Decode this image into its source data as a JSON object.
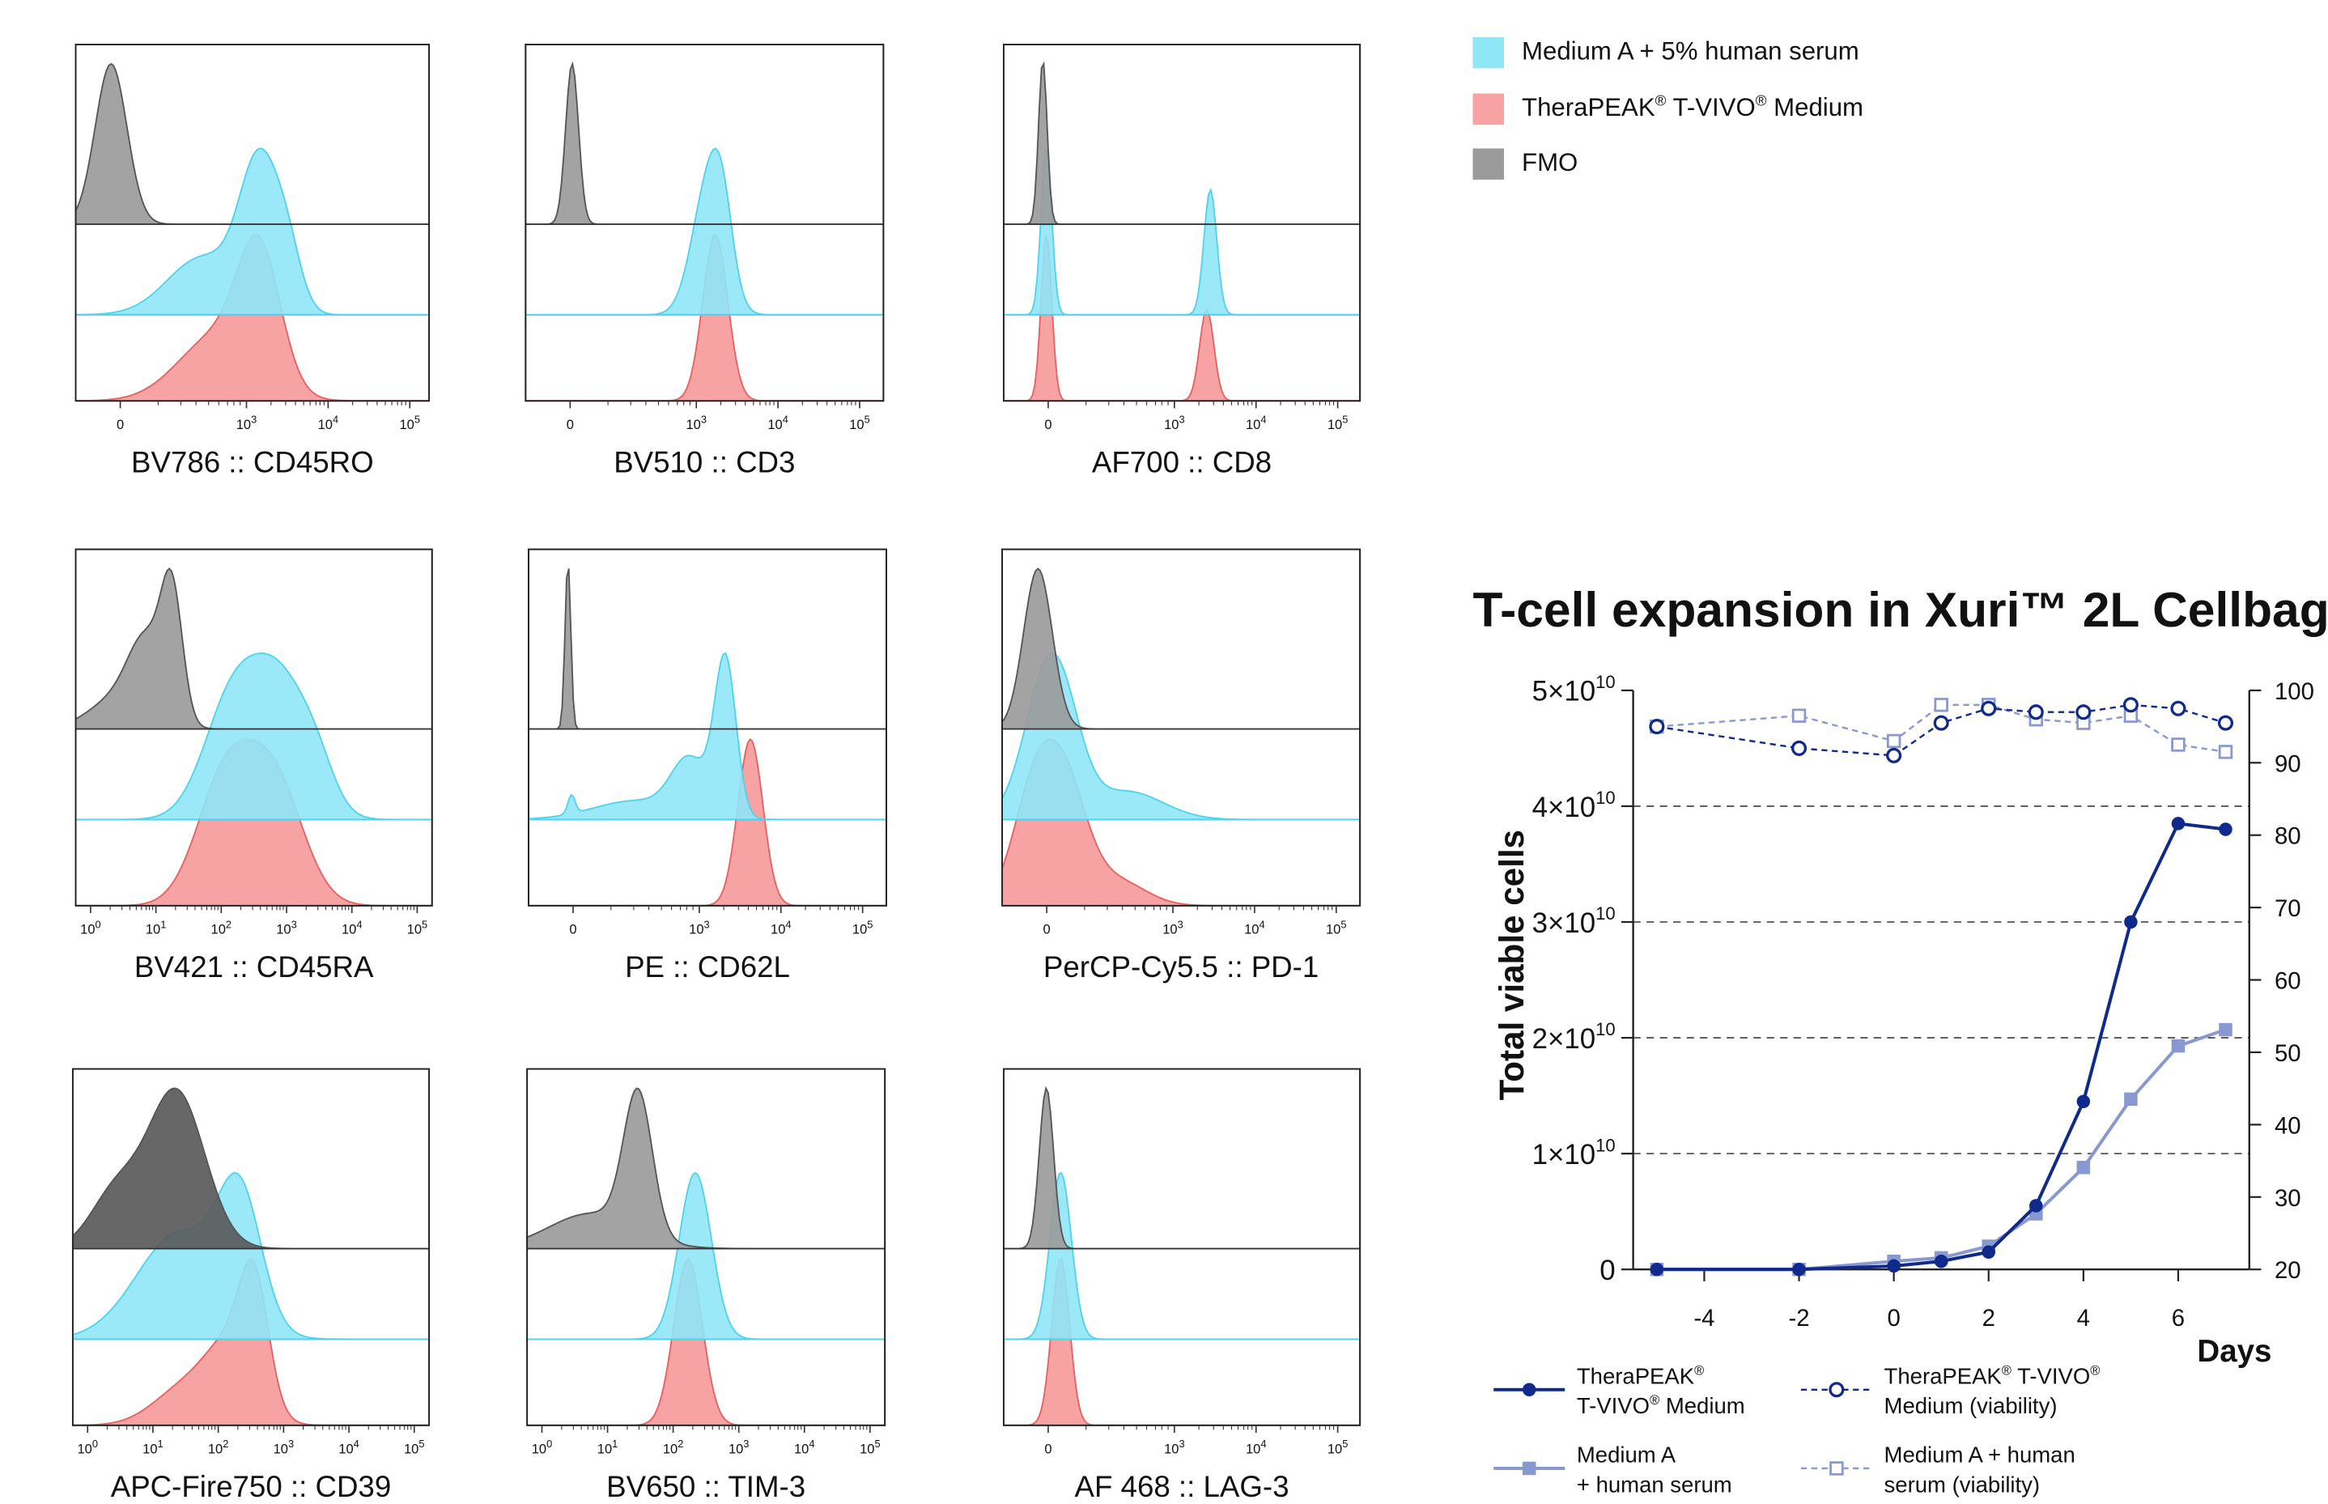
{
  "colors": {
    "medium_a": "#8fe6f7",
    "medium_a_edge": "#4fd2ee",
    "therapeak": "#f7a3a3",
    "therapeak_edge": "#e8605f",
    "fmo": "#9b9b9b",
    "fmo_edge": "#555555",
    "fmo_dark": "#5a5a5a",
    "line_dark": "#0f2a8c",
    "line_light": "#8898d0"
  },
  "legend_top": [
    {
      "label": "Medium A + 5% human serum",
      "color_key": "medium_a"
    },
    {
      "label": "TheraPEAK® T-VIVO® Medium",
      "color_key": "therapeak"
    },
    {
      "label": "FMO",
      "color_key": "fmo"
    }
  ],
  "histograms": [
    {
      "id": "cd45ro",
      "label": "BV786 :: CD45RO",
      "ticks": [
        "0",
        "10^3",
        "10^4",
        "10^5"
      ],
      "axis": "ss"
    },
    {
      "id": "cd3",
      "label": "BV510 :: CD3",
      "ticks": [
        "0",
        "10^3",
        "10^4",
        "10^5"
      ],
      "axis": "ss"
    },
    {
      "id": "cd8",
      "label": "AF700 :: CD8",
      "ticks": [
        "0",
        "10^3",
        "10^4",
        "10^5"
      ],
      "axis": "ss"
    },
    {
      "id": "cd45ra",
      "label": "BV421 :: CD45RA",
      "ticks": [
        "10^0",
        "10^1",
        "10^2",
        "10^3",
        "10^4",
        "10^5"
      ],
      "axis": "log"
    },
    {
      "id": "cd62l",
      "label": "PE :: CD62L",
      "ticks": [
        "0",
        "10^3",
        "10^4",
        "10^5"
      ],
      "axis": "ss"
    },
    {
      "id": "pd1",
      "label": "PerCP-Cy5.5 :: PD-1",
      "ticks": [
        "0",
        "10^3",
        "10^4",
        "10^5"
      ],
      "axis": "ss"
    },
    {
      "id": "cd39",
      "label": "APC-Fire750 :: CD39",
      "ticks": [
        "10^0",
        "10^1",
        "10^2",
        "10^3",
        "10^4",
        "10^5"
      ],
      "axis": "log"
    },
    {
      "id": "tim3",
      "label": "BV650 :: TIM-3",
      "ticks": [
        "10^0",
        "10^1",
        "10^2",
        "10^3",
        "10^4",
        "10^5"
      ],
      "axis": "log"
    },
    {
      "id": "lag3",
      "label": "AF 468 :: LAG-3",
      "ticks": [
        "0",
        "10^3",
        "10^4",
        "10^5"
      ],
      "axis": "ss"
    }
  ],
  "chart_data": {
    "type": "line",
    "title": "T-cell expansion in Xuri™ 2L Cellbag",
    "xlabel": "Days",
    "ylabel": "Total viable cells",
    "xlim": [
      -5.5,
      7.5
    ],
    "xticks": [
      -4,
      -2,
      0,
      2,
      4,
      6
    ],
    "ylim": [
      0,
      50000000000.0
    ],
    "yticks": [
      {
        "value": 0,
        "label": "0"
      },
      {
        "value": 10000000000.0,
        "label": "1×10^10"
      },
      {
        "value": 20000000000.0,
        "label": "2×10^10"
      },
      {
        "value": 30000000000.0,
        "label": "3×10^10"
      },
      {
        "value": 40000000000.0,
        "label": "4×10^10"
      },
      {
        "value": 50000000000.0,
        "label": "5×10^10"
      }
    ],
    "y2lim": [
      20,
      100
    ],
    "y2ticks": [
      20,
      30,
      40,
      50,
      60,
      70,
      80,
      90,
      100
    ],
    "grid": "dashed horizontal at 1×10^10 to 4×10^10",
    "series": [
      {
        "name": "TheraPEAK® T-VIVO® Medium",
        "axis": "left",
        "marker": "filled-circle",
        "line": "solid",
        "color_key": "line_dark",
        "x": [
          -5,
          -2,
          0,
          1,
          2,
          3,
          4,
          5,
          6,
          7
        ],
        "y": [
          0.0,
          0.0,
          300000000.0,
          700000000.0,
          1500000000.0,
          5500000000.0,
          14500000000.0,
          30000000000.0,
          38500000000.0,
          38000000000.0
        ]
      },
      {
        "name": "Medium A + human serum",
        "axis": "left",
        "marker": "filled-square",
        "line": "solid",
        "color_key": "line_light",
        "x": [
          -5,
          -2,
          0,
          1,
          2,
          3,
          4,
          5,
          6,
          7
        ],
        "y": [
          0.0,
          0.0,
          700000000.0,
          1000000000.0,
          2000000000.0,
          4800000000.0,
          8800000000.0,
          14700000000.0,
          19300000000.0,
          20700000000.0
        ]
      },
      {
        "name": "TheraPEAK® T-VIVO® Medium (viability)",
        "axis": "right",
        "marker": "open-circle",
        "line": "dashed",
        "color_key": "line_dark",
        "x": [
          -5,
          -2,
          0,
          1,
          2,
          3,
          4,
          5,
          6,
          7
        ],
        "y": [
          95,
          92,
          91,
          95.5,
          97.5,
          97,
          97,
          98,
          97.5,
          95.5
        ]
      },
      {
        "name": "Medium A + human serum (viability)",
        "axis": "right",
        "marker": "open-square",
        "line": "dashed",
        "color_key": "line_light",
        "x": [
          -5,
          -2,
          0,
          1,
          2,
          3,
          4,
          5,
          6,
          7
        ],
        "y": [
          95,
          96.5,
          93,
          98,
          98,
          96,
          95.5,
          96.5,
          92.5,
          91.5
        ]
      }
    ]
  },
  "bottom_legend": [
    {
      "line1": "TheraPEAK®",
      "line2": "T-VIVO® Medium",
      "series_index": 0
    },
    {
      "line1": "TheraPEAK® T-VIVO®",
      "line2": "Medium (viability)",
      "series_index": 2
    },
    {
      "line1": "Medium A",
      "line2": "+ human serum",
      "series_index": 1
    },
    {
      "line1": "Medium A + human",
      "line2": "serum (viability)",
      "series_index": 3
    }
  ]
}
